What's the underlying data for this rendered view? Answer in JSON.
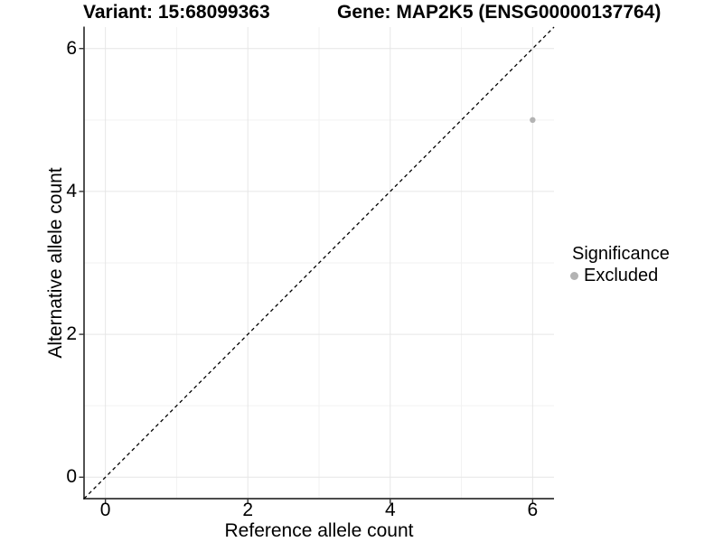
{
  "header": {
    "variant_title": "Variant: 15:68099363",
    "gene_title": "Gene: MAP2K5 (ENSG00000137764)"
  },
  "chart_data": {
    "type": "scatter",
    "titles": [
      "Variant: 15:68099363",
      "Gene: MAP2K5 (ENSG00000137764)"
    ],
    "xlabel": "Reference allele count",
    "ylabel": "Alternative allele count",
    "xlim": [
      -0.3,
      6.3
    ],
    "ylim": [
      -0.3,
      6.3
    ],
    "x_ticks": [
      0,
      2,
      4,
      6
    ],
    "y_ticks": [
      0,
      2,
      4,
      6
    ],
    "minor_gridlines": [
      1,
      3,
      5
    ],
    "grid": "major+minor",
    "identity_line": {
      "style": "dashed",
      "slope": 1,
      "intercept": 0,
      "color": "#000000"
    },
    "series": [
      {
        "name": "Excluded",
        "color": "#b3b3b3",
        "marker": "circle",
        "points": [
          {
            "x": 6,
            "y": 5
          }
        ]
      }
    ],
    "legend": {
      "position": "right",
      "title": "Significance",
      "items": [
        {
          "label": "Excluded",
          "color": "#b3b3b3"
        }
      ]
    },
    "colors": {
      "axis": "#333333",
      "grid_major": "#e6e6e6",
      "grid_minor": "#f2f2f2",
      "background": "#ffffff"
    }
  }
}
